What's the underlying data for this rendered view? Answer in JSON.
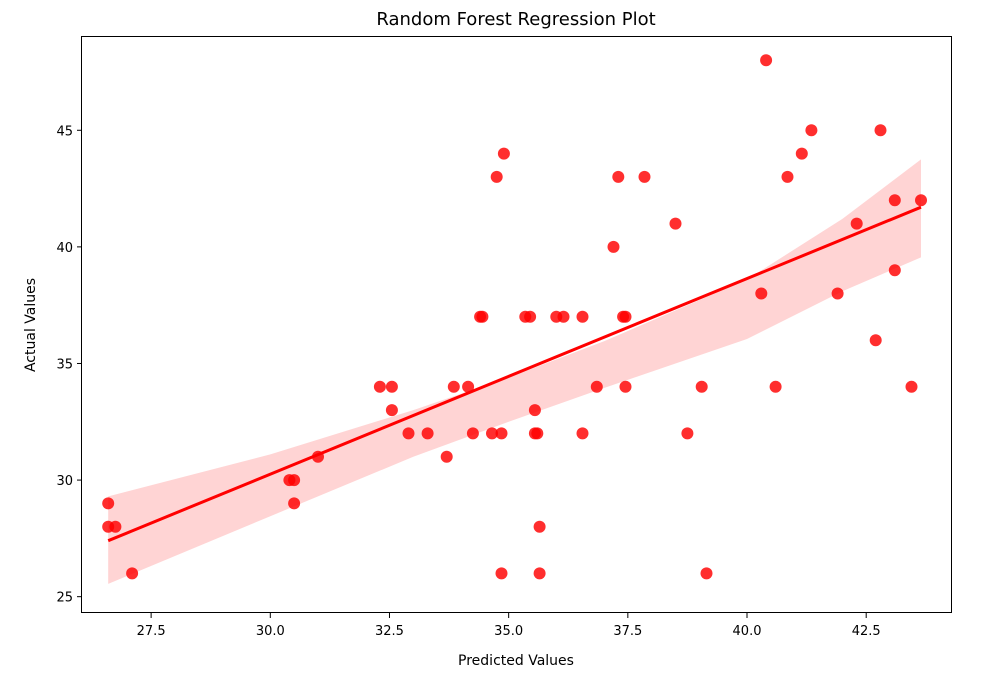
{
  "chart_data": {
    "type": "scatter",
    "title": "Random Forest Regression Plot",
    "xlabel": "Predicted Values",
    "ylabel": "Actual Values",
    "xlim": [
      26.05,
      44.3
    ],
    "ylim": [
      24.3,
      49.0
    ],
    "xticks": [
      27.5,
      30.0,
      32.5,
      35.0,
      37.5,
      40.0,
      42.5
    ],
    "xtick_labels": [
      "27.5",
      "30.0",
      "32.5",
      "35.0",
      "37.5",
      "40.0",
      "42.5"
    ],
    "yticks": [
      25,
      30,
      35,
      40,
      45
    ],
    "ytick_labels": [
      "25",
      "30",
      "35",
      "40",
      "45"
    ],
    "grid": false,
    "colors": {
      "points": "#ff0000",
      "line": "#ff0000",
      "band": "#ffcccc",
      "frame": "#000000"
    },
    "regression": {
      "x": [
        26.6,
        43.65
      ],
      "y": [
        27.4,
        41.7
      ]
    },
    "confidence_band": {
      "x": [
        26.6,
        30.0,
        33.0,
        35.0,
        37.0,
        40.0,
        42.0,
        43.65
      ],
      "upper": [
        29.3,
        31.1,
        33.0,
        34.4,
        35.95,
        38.6,
        41.2,
        43.75
      ],
      "lower": [
        25.55,
        28.45,
        31.0,
        32.5,
        33.95,
        36.05,
        38.1,
        39.55
      ]
    },
    "points": [
      {
        "x": 26.6,
        "y": 29
      },
      {
        "x": 26.6,
        "y": 28
      },
      {
        "x": 26.75,
        "y": 28
      },
      {
        "x": 27.1,
        "y": 26
      },
      {
        "x": 30.4,
        "y": 30
      },
      {
        "x": 30.5,
        "y": 30
      },
      {
        "x": 30.5,
        "y": 29
      },
      {
        "x": 31.0,
        "y": 31
      },
      {
        "x": 32.3,
        "y": 34
      },
      {
        "x": 32.55,
        "y": 34
      },
      {
        "x": 32.55,
        "y": 33
      },
      {
        "x": 32.9,
        "y": 32
      },
      {
        "x": 33.3,
        "y": 32
      },
      {
        "x": 33.7,
        "y": 31
      },
      {
        "x": 33.85,
        "y": 34
      },
      {
        "x": 34.15,
        "y": 34
      },
      {
        "x": 34.25,
        "y": 32
      },
      {
        "x": 34.4,
        "y": 37
      },
      {
        "x": 34.45,
        "y": 37
      },
      {
        "x": 34.65,
        "y": 32
      },
      {
        "x": 34.75,
        "y": 43
      },
      {
        "x": 34.85,
        "y": 32
      },
      {
        "x": 34.9,
        "y": 44
      },
      {
        "x": 34.85,
        "y": 26
      },
      {
        "x": 35.35,
        "y": 37
      },
      {
        "x": 35.45,
        "y": 37
      },
      {
        "x": 35.55,
        "y": 33
      },
      {
        "x": 35.55,
        "y": 32
      },
      {
        "x": 35.6,
        "y": 32
      },
      {
        "x": 35.65,
        "y": 28
      },
      {
        "x": 35.65,
        "y": 26
      },
      {
        "x": 36.0,
        "y": 37
      },
      {
        "x": 36.15,
        "y": 37
      },
      {
        "x": 36.55,
        "y": 37
      },
      {
        "x": 36.55,
        "y": 32
      },
      {
        "x": 36.85,
        "y": 34
      },
      {
        "x": 37.2,
        "y": 40
      },
      {
        "x": 37.3,
        "y": 43
      },
      {
        "x": 37.4,
        "y": 37
      },
      {
        "x": 37.45,
        "y": 37
      },
      {
        "x": 37.45,
        "y": 34
      },
      {
        "x": 37.85,
        "y": 43
      },
      {
        "x": 38.5,
        "y": 41
      },
      {
        "x": 38.75,
        "y": 32
      },
      {
        "x": 39.05,
        "y": 34
      },
      {
        "x": 39.15,
        "y": 26
      },
      {
        "x": 40.3,
        "y": 38
      },
      {
        "x": 40.4,
        "y": 48
      },
      {
        "x": 40.6,
        "y": 34
      },
      {
        "x": 40.85,
        "y": 43
      },
      {
        "x": 41.15,
        "y": 44
      },
      {
        "x": 41.35,
        "y": 45
      },
      {
        "x": 41.9,
        "y": 38
      },
      {
        "x": 42.3,
        "y": 41
      },
      {
        "x": 42.7,
        "y": 36
      },
      {
        "x": 42.8,
        "y": 45
      },
      {
        "x": 43.1,
        "y": 42
      },
      {
        "x": 43.1,
        "y": 39
      },
      {
        "x": 43.45,
        "y": 34
      },
      {
        "x": 43.65,
        "y": 42
      }
    ]
  }
}
